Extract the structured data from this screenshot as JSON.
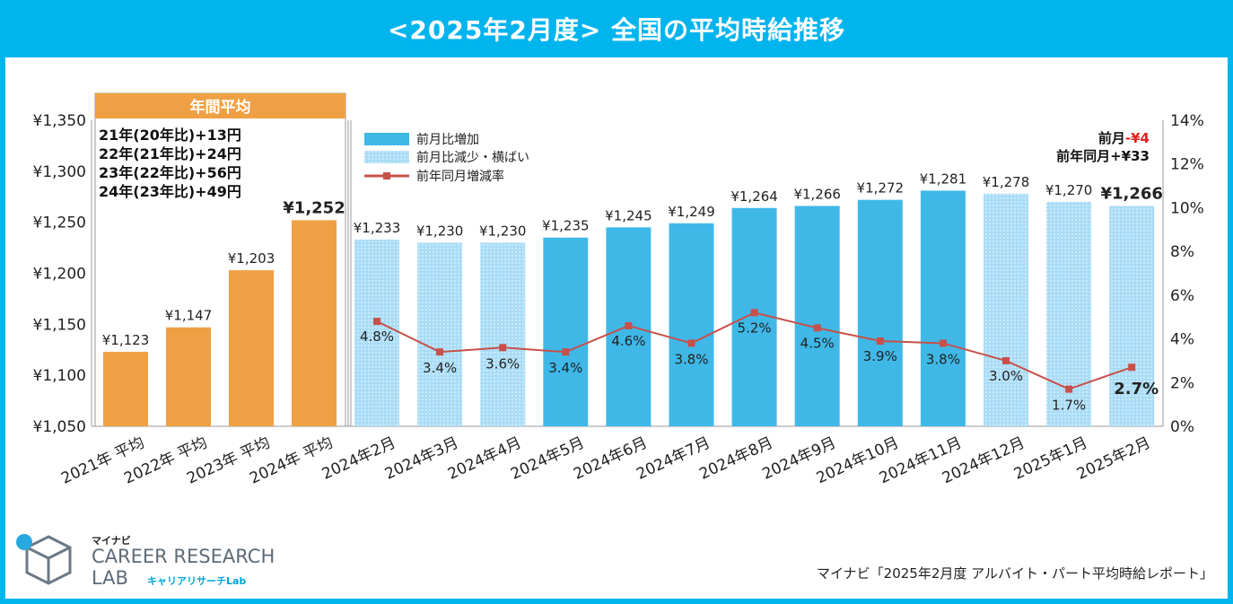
{
  "title": "<2025年2月度> 全国の平均時給推移",
  "annual_box": {
    "header": "年間平均",
    "lines": [
      "21年(20年比)+13円",
      "22年(21年比)+24円",
      "23年(22年比)+56円",
      "24年(23年比)+49円"
    ]
  },
  "topright_note": {
    "line1_prefix": "前月",
    "line1_value": "-¥4",
    "line2": "前年同月+¥33"
  },
  "legend": {
    "increase": "前月比増加",
    "decrease": "前月比減少・横ばい",
    "rate": "前年同月増減率"
  },
  "colors": {
    "annual_bar": "#f0a044",
    "increase_bar": "#3fb8e8",
    "decrease_bar": "#a9dcf6",
    "rate_line": "#c8504a",
    "title_bg": "#00b4ee",
    "negative_text": "#e0231e"
  },
  "chart_data": {
    "type": "bar",
    "categories": [
      "2021年 平均",
      "2022年 平均",
      "2023年 平均",
      "2024年 平均",
      "2024年2月",
      "2024年3月",
      "2024年4月",
      "2024年5月",
      "2024年6月",
      "2024年7月",
      "2024年8月",
      "2024年9月",
      "2024年10月",
      "2024年11月",
      "2024年12月",
      "2025年1月",
      "2025年2月"
    ],
    "values": [
      1123,
      1147,
      1203,
      1252,
      1233,
      1230,
      1230,
      1235,
      1245,
      1249,
      1264,
      1266,
      1272,
      1281,
      1278,
      1270,
      1266
    ],
    "value_labels": [
      "¥1,123",
      "¥1,147",
      "¥1,203",
      "¥1,252",
      "¥1,233",
      "¥1,230",
      "¥1,230",
      "¥1,235",
      "¥1,245",
      "¥1,249",
      "¥1,264",
      "¥1,266",
      "¥1,272",
      "¥1,281",
      "¥1,278",
      "¥1,270",
      "¥1,266"
    ],
    "bar_kind": [
      "annual",
      "annual",
      "annual",
      "annual",
      "decrease",
      "decrease",
      "decrease",
      "increase",
      "increase",
      "increase",
      "increase",
      "increase",
      "increase",
      "increase",
      "decrease",
      "decrease",
      "decrease"
    ],
    "rate_series": {
      "name": "前年同月増減率",
      "categories": [
        "2024年2月",
        "2024年3月",
        "2024年4月",
        "2024年5月",
        "2024年6月",
        "2024年7月",
        "2024年8月",
        "2024年9月",
        "2024年10月",
        "2024年11月",
        "2024年12月",
        "2025年1月",
        "2025年2月"
      ],
      "values": [
        4.8,
        3.4,
        3.6,
        3.4,
        4.6,
        3.8,
        5.2,
        4.5,
        3.9,
        3.8,
        3.0,
        1.7,
        2.7
      ],
      "labels": [
        "4.8%",
        "3.4%",
        "3.6%",
        "3.4%",
        "4.6%",
        "3.8%",
        "5.2%",
        "4.5%",
        "3.9%",
        "3.8%",
        "3.0%",
        "1.7%",
        "2.7%"
      ]
    },
    "y_left": {
      "min": 1050,
      "max": 1350,
      "ticks": [
        "¥1,050",
        "¥1,100",
        "¥1,150",
        "¥1,200",
        "¥1,250",
        "¥1,300",
        "¥1,350"
      ]
    },
    "y_right": {
      "min": 0,
      "max": 14,
      "ticks": [
        "0%",
        "2%",
        "4%",
        "6%",
        "8%",
        "10%",
        "12%",
        "14%"
      ]
    },
    "legend_position": "top-left"
  },
  "footer": {
    "brand_small": "マイナビ",
    "brand_main": "CAREER RESEARCH",
    "brand_lab": "LAB",
    "brand_jp": "キャリアリサーチLab",
    "source": "マイナビ「2025年2月度 アルバイト・パート平均時給レポート」"
  }
}
